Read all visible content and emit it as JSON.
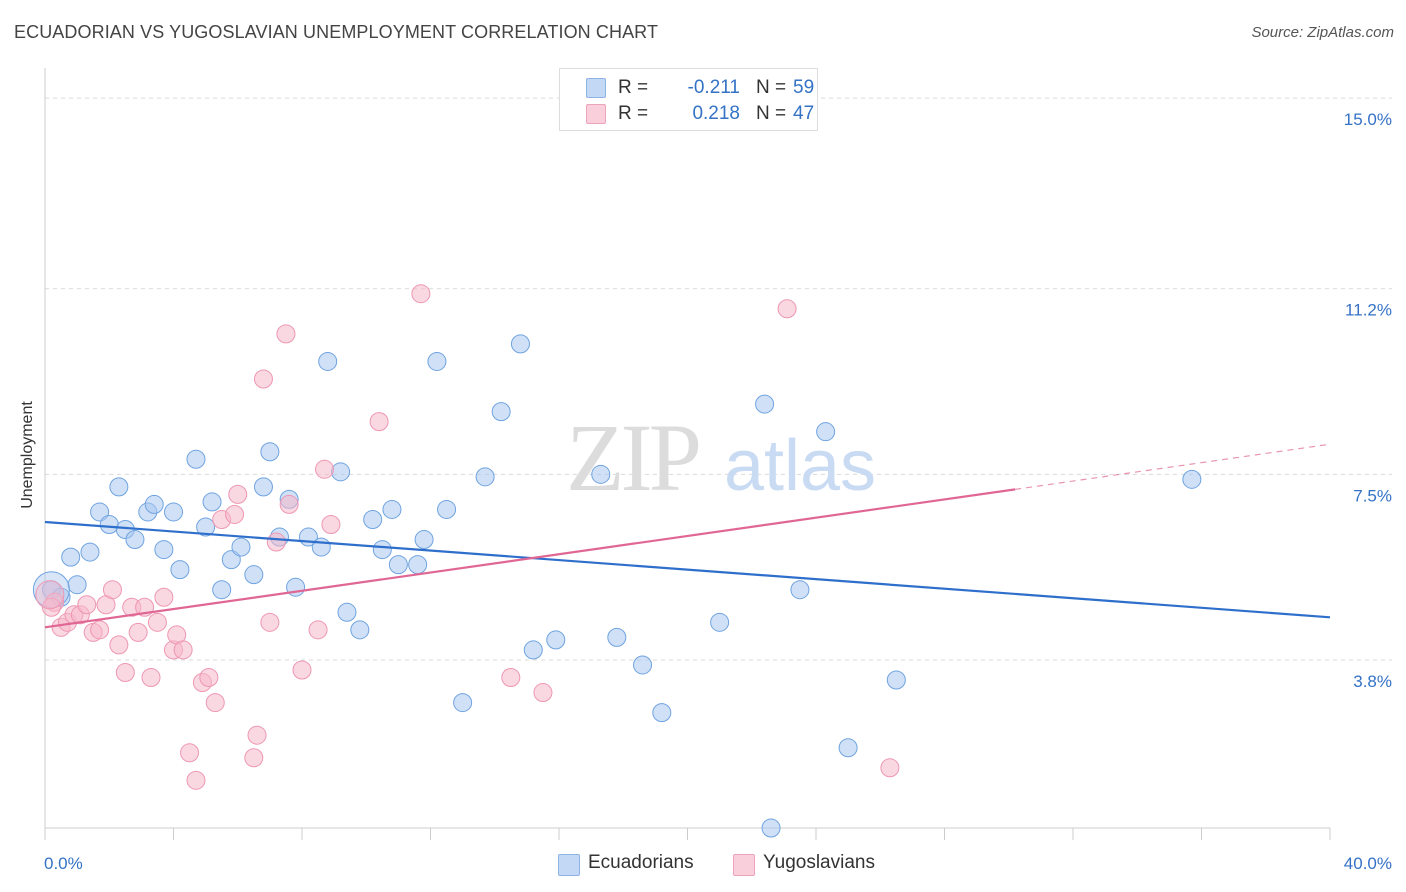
{
  "title": "ECUADORIAN VS YUGOSLAVIAN UNEMPLOYMENT CORRELATION CHART",
  "source": "Source: ZipAtlas.com",
  "watermark": {
    "zip": "ZIP",
    "atlas": "atlas"
  },
  "legend": {
    "rows": [
      {
        "r_label": "R =",
        "r_value": "-0.211",
        "n_label": "N =",
        "n_value": "59",
        "color": "#a9c8f0"
      },
      {
        "r_label": "R =",
        "r_value": "0.218",
        "n_label": "N =",
        "n_value": "47",
        "color": "#f5b8cb"
      }
    ]
  },
  "bottom_legend": {
    "items": [
      {
        "label": "Ecuadorians",
        "color": "#a9c8f0"
      },
      {
        "label": "Yugoslavians",
        "color": "#f5b8cb"
      }
    ]
  },
  "chart_data": {
    "type": "scatter",
    "title": "ECUADORIAN VS YUGOSLAVIAN UNEMPLOYMENT CORRELATION CHART",
    "xlabel": "",
    "ylabel": "Unemployment",
    "xlim": [
      0,
      40
    ],
    "ylim": [
      0.45,
      15.4
    ],
    "x_tick_labels": [
      "0.0%",
      "40.0%"
    ],
    "y_ticks": [
      3.8,
      7.5,
      11.2,
      15.0
    ],
    "y_tick_labels": [
      "3.8%",
      "7.5%",
      "11.2%",
      "15.0%"
    ],
    "grid": true,
    "series": [
      {
        "name": "Ecuadorians",
        "color": "#6fa3e0",
        "fill": "#a9c8f0",
        "trend": {
          "x": [
            0,
            40
          ],
          "y": [
            6.55,
            4.65
          ],
          "color": "#2f6fcc"
        },
        "points": [
          [
            0.2,
            5.2
          ],
          [
            0.5,
            5.05
          ],
          [
            0.8,
            5.85
          ],
          [
            1.0,
            5.3
          ],
          [
            1.4,
            5.95
          ],
          [
            1.7,
            6.75
          ],
          [
            2.0,
            6.5
          ],
          [
            2.3,
            7.25
          ],
          [
            2.5,
            6.4
          ],
          [
            2.8,
            6.2
          ],
          [
            3.2,
            6.75
          ],
          [
            3.4,
            6.9
          ],
          [
            3.7,
            6.0
          ],
          [
            4.0,
            6.75
          ],
          [
            4.2,
            5.6
          ],
          [
            4.7,
            7.8
          ],
          [
            5.0,
            6.45
          ],
          [
            5.2,
            6.95
          ],
          [
            5.5,
            5.2
          ],
          [
            5.8,
            5.8
          ],
          [
            6.1,
            6.05
          ],
          [
            6.5,
            5.5
          ],
          [
            6.8,
            7.25
          ],
          [
            7.0,
            7.95
          ],
          [
            7.3,
            6.25
          ],
          [
            7.6,
            7.0
          ],
          [
            7.8,
            5.25
          ],
          [
            8.2,
            6.25
          ],
          [
            8.6,
            6.05
          ],
          [
            8.8,
            9.75
          ],
          [
            9.2,
            7.55
          ],
          [
            9.4,
            4.75
          ],
          [
            9.8,
            4.4
          ],
          [
            10.2,
            6.6
          ],
          [
            10.5,
            6.0
          ],
          [
            10.8,
            6.8
          ],
          [
            11.0,
            5.7
          ],
          [
            11.6,
            5.7
          ],
          [
            11.8,
            6.2
          ],
          [
            12.2,
            9.75
          ],
          [
            12.5,
            6.8
          ],
          [
            13.0,
            2.95
          ],
          [
            13.7,
            7.45
          ],
          [
            14.2,
            8.75
          ],
          [
            14.8,
            10.1
          ],
          [
            15.2,
            4.0
          ],
          [
            15.9,
            4.2
          ],
          [
            17.3,
            7.5
          ],
          [
            17.8,
            4.25
          ],
          [
            18.6,
            3.7
          ],
          [
            19.2,
            2.75
          ],
          [
            21.0,
            4.55
          ],
          [
            22.4,
            8.9
          ],
          [
            23.5,
            5.2
          ],
          [
            24.3,
            8.35
          ],
          [
            25.0,
            2.05
          ],
          [
            26.5,
            3.4
          ],
          [
            35.7,
            7.4
          ],
          [
            22.6,
            0.45
          ]
        ]
      },
      {
        "name": "Yugoslavians",
        "color": "#ee97b3",
        "fill": "#f5b8cb",
        "trend": {
          "x": [
            0,
            30.2
          ],
          "y": [
            4.45,
            7.2
          ],
          "color": "#e06693"
        },
        "trend_extension": {
          "x": [
            30.2,
            40
          ],
          "y": [
            7.2,
            8.1
          ]
        },
        "points": [
          [
            0.3,
            4.95
          ],
          [
            0.5,
            4.45
          ],
          [
            0.7,
            4.55
          ],
          [
            0.9,
            4.7
          ],
          [
            1.1,
            4.7
          ],
          [
            1.3,
            4.9
          ],
          [
            1.5,
            4.35
          ],
          [
            1.7,
            4.4
          ],
          [
            1.9,
            4.9
          ],
          [
            2.1,
            5.2
          ],
          [
            2.3,
            4.1
          ],
          [
            2.5,
            3.55
          ],
          [
            2.7,
            4.85
          ],
          [
            2.9,
            4.35
          ],
          [
            3.1,
            4.85
          ],
          [
            3.3,
            3.45
          ],
          [
            3.5,
            4.55
          ],
          [
            3.7,
            5.05
          ],
          [
            4.0,
            4.0
          ],
          [
            4.1,
            4.3
          ],
          [
            4.3,
            4.0
          ],
          [
            4.5,
            1.95
          ],
          [
            4.7,
            1.4
          ],
          [
            4.9,
            3.35
          ],
          [
            5.1,
            3.45
          ],
          [
            5.3,
            2.95
          ],
          [
            5.5,
            6.6
          ],
          [
            5.9,
            6.7
          ],
          [
            6.0,
            7.1
          ],
          [
            6.6,
            2.3
          ],
          [
            6.5,
            1.85
          ],
          [
            6.8,
            9.4
          ],
          [
            7.0,
            4.55
          ],
          [
            7.2,
            6.15
          ],
          [
            7.5,
            10.3
          ],
          [
            7.6,
            6.9
          ],
          [
            8.0,
            3.6
          ],
          [
            8.5,
            4.4
          ],
          [
            8.7,
            7.6
          ],
          [
            8.9,
            6.5
          ],
          [
            10.4,
            8.55
          ],
          [
            11.7,
            11.1
          ],
          [
            14.5,
            3.45
          ],
          [
            15.5,
            3.15
          ],
          [
            23.1,
            10.8
          ],
          [
            26.3,
            1.65
          ],
          [
            0.2,
            4.85
          ]
        ]
      }
    ]
  }
}
